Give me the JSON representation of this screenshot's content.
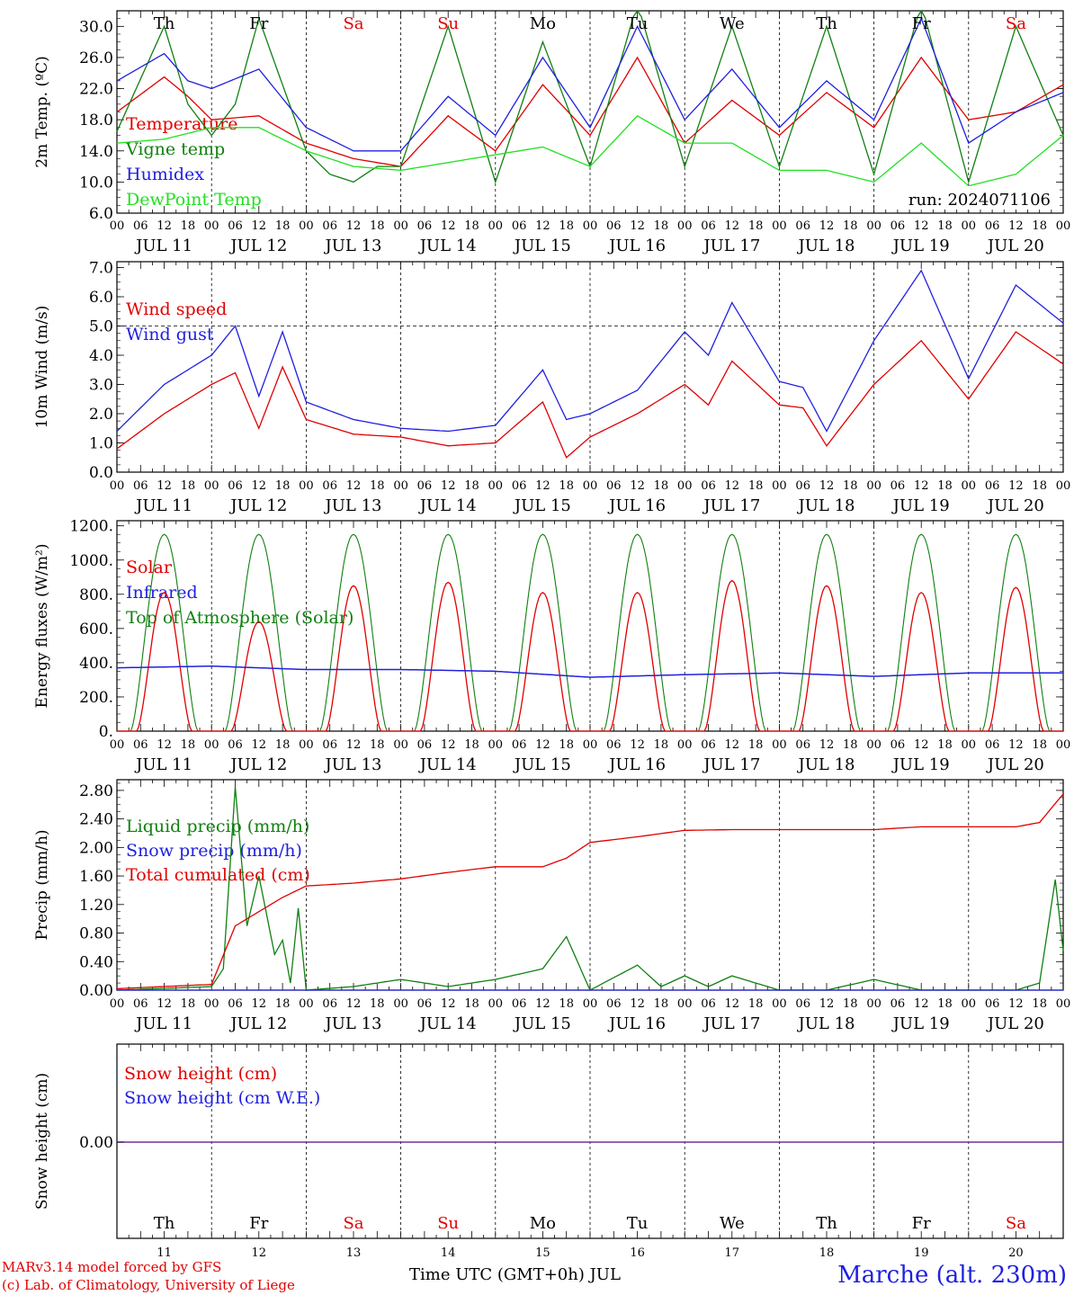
{
  "run_label": "run: 2024071106",
  "day_names": [
    "Th",
    "Fr",
    "Sa",
    "Su",
    "Mo",
    "Tu",
    "We",
    "Th",
    "Fr",
    "Sa"
  ],
  "weekend_day_index": [
    2,
    3,
    9
  ],
  "date_labels": [
    "JUL 11",
    "JUL 12",
    "JUL 13",
    "JUL 14",
    "JUL 15",
    "JUL 16",
    "JUL 17",
    "JUL 18",
    "JUL 19",
    "JUL 20"
  ],
  "day_numbers": [
    "11",
    "12",
    "13",
    "14",
    "15",
    "16",
    "17",
    "18",
    "19",
    "20"
  ],
  "hour_labels": [
    "00",
    "06",
    "12",
    "18"
  ],
  "final_hour_label": "00",
  "footer": {
    "model": "MARv3.14 model forced by GFS",
    "copyright": "(c) Lab. of Climatology, University of Liege",
    "time_title": "Time UTC (GMT+0h) JUL",
    "station": "Marche (alt. 230m)"
  },
  "colors": {
    "red": "#e00000",
    "green": "#108010",
    "blue": "#2020e0",
    "lightgreen": "#20e020",
    "purple": "#7030a0",
    "grid": "#000000"
  },
  "chart_data": [
    {
      "type": "line",
      "ylabel": "2m Temp. (ºC)",
      "yticks": [
        "6.0",
        "10.0",
        "14.0",
        "18.0",
        "22.0",
        "26.0",
        "30.0"
      ],
      "ylim": [
        6,
        32
      ],
      "x_unit": "hours since JUL 11 00 UTC",
      "series": [
        {
          "name": "Temperature",
          "color": "red",
          "x": [
            0,
            12,
            18,
            24,
            36,
            48,
            60,
            72,
            84,
            96,
            108,
            120,
            132,
            144,
            156,
            168,
            180,
            192,
            204,
            216,
            228,
            240
          ],
          "values": [
            19,
            23.5,
            21,
            18,
            18.5,
            15,
            13,
            12,
            18.5,
            14,
            22.5,
            16,
            26,
            15,
            20.5,
            16,
            21.5,
            17,
            26,
            18,
            19,
            22.5
          ]
        },
        {
          "name": "Vigne temp",
          "color": "green",
          "x": [
            0,
            12,
            18,
            24,
            30,
            36,
            48,
            54,
            60,
            66,
            72,
            84,
            96,
            108,
            120,
            132,
            144,
            156,
            168,
            180,
            192,
            204,
            216,
            228,
            240
          ],
          "values": [
            16.5,
            30,
            20,
            16,
            20,
            31,
            14,
            11,
            10,
            12,
            12,
            30,
            10,
            28,
            12,
            33,
            12,
            30,
            12,
            30,
            11,
            33,
            10,
            30,
            16
          ]
        },
        {
          "name": "Humidex",
          "color": "blue",
          "x": [
            0,
            12,
            18,
            24,
            36,
            48,
            60,
            72,
            84,
            96,
            108,
            120,
            132,
            144,
            156,
            168,
            180,
            192,
            204,
            216,
            228,
            240
          ],
          "values": [
            23,
            26.5,
            23,
            22,
            24.5,
            17,
            14,
            14,
            21,
            16,
            26,
            17,
            30,
            18,
            24.5,
            17,
            23,
            18,
            31,
            15,
            19,
            21.5
          ]
        },
        {
          "name": "DewPoint Temp",
          "color": "lightgreen",
          "x": [
            0,
            12,
            24,
            36,
            48,
            60,
            72,
            84,
            96,
            108,
            120,
            132,
            144,
            156,
            168,
            180,
            192,
            204,
            216,
            228,
            240
          ],
          "values": [
            15,
            15.5,
            17,
            17,
            14,
            12,
            11.5,
            12.5,
            13.5,
            14.5,
            12,
            18.5,
            15,
            15,
            11.5,
            11.5,
            10,
            15,
            9.5,
            11,
            16
          ]
        }
      ]
    },
    {
      "type": "line",
      "ylabel": "10m Wind (m/s)",
      "yticks": [
        "0.0",
        "1.0",
        "2.0",
        "3.0",
        "4.0",
        "5.0",
        "6.0",
        "7.0"
      ],
      "ylim": [
        0,
        7.2
      ],
      "reference_line": 5.0,
      "series": [
        {
          "name": "Wind speed",
          "color": "red",
          "x": [
            0,
            12,
            24,
            30,
            36,
            42,
            48,
            60,
            72,
            84,
            96,
            108,
            114,
            120,
            132,
            144,
            150,
            156,
            168,
            174,
            180,
            192,
            204,
            216,
            228,
            240
          ],
          "values": [
            0.8,
            2.0,
            3.0,
            3.4,
            1.5,
            3.6,
            1.8,
            1.3,
            1.2,
            0.9,
            1.0,
            2.4,
            0.5,
            1.2,
            2.0,
            3.0,
            2.3,
            3.8,
            2.3,
            2.2,
            0.9,
            3.0,
            4.5,
            2.5,
            4.8,
            3.7
          ]
        },
        {
          "name": "Wind gust",
          "color": "blue",
          "x": [
            0,
            12,
            24,
            30,
            36,
            42,
            48,
            60,
            72,
            84,
            96,
            108,
            114,
            120,
            132,
            144,
            150,
            156,
            168,
            174,
            180,
            192,
            204,
            216,
            228,
            240
          ],
          "values": [
            1.4,
            3.0,
            4.0,
            5.0,
            2.6,
            4.8,
            2.4,
            1.8,
            1.5,
            1.4,
            1.6,
            3.5,
            1.8,
            2.0,
            2.8,
            4.8,
            4.0,
            5.8,
            3.1,
            2.9,
            1.4,
            4.5,
            6.9,
            3.2,
            6.4,
            5.1
          ]
        }
      ]
    },
    {
      "type": "line",
      "ylabel": "Energy fluxes (W/m²)",
      "yticks": [
        "0.",
        "200.",
        "400.",
        "600.",
        "800.",
        "1000.",
        "1200."
      ],
      "ylim": [
        0,
        1230
      ],
      "solar_peaks": [
        810,
        640,
        850,
        870,
        810,
        810,
        880,
        850,
        810,
        840
      ],
      "infrared_daily": [
        370,
        380,
        360,
        360,
        350,
        315,
        330,
        340,
        320,
        340
      ],
      "toa_peak": 1150,
      "series": [
        {
          "name": "Solar",
          "color": "red"
        },
        {
          "name": "Infrared",
          "color": "blue"
        },
        {
          "name": "Top of Atmosphere (Solar)",
          "color": "green"
        }
      ]
    },
    {
      "type": "line",
      "ylabel": "Precip (mm/h)",
      "yticks": [
        "0.00",
        "0.40",
        "0.80",
        "1.20",
        "1.60",
        "2.00",
        "2.40",
        "2.80"
      ],
      "ylim": [
        0,
        2.95
      ],
      "series": [
        {
          "name": "Liquid precip (mm/h)",
          "color": "green",
          "x": [
            0,
            24,
            27,
            30,
            33,
            36,
            40,
            42,
            44,
            46,
            48,
            60,
            72,
            84,
            96,
            108,
            114,
            120,
            132,
            138,
            144,
            150,
            156,
            168,
            180,
            192,
            204,
            228,
            234,
            238,
            240
          ],
          "values": [
            0,
            0.05,
            0.3,
            2.85,
            0.9,
            1.6,
            0.5,
            0.7,
            0.1,
            1.15,
            0,
            0.05,
            0.15,
            0.05,
            0.15,
            0.3,
            0.75,
            0,
            0.35,
            0.05,
            0.2,
            0.05,
            0.2,
            0,
            0,
            0.15,
            0,
            0,
            0.1,
            1.55,
            0.55
          ]
        },
        {
          "name": "Snow precip (mm/h)",
          "color": "blue",
          "x": [
            0,
            240
          ],
          "values": [
            0,
            0
          ]
        },
        {
          "name": "Total cumulated (cm)",
          "color": "red",
          "x": [
            0,
            24,
            30,
            36,
            42,
            48,
            60,
            72,
            84,
            96,
            108,
            114,
            120,
            132,
            144,
            156,
            168,
            180,
            192,
            204,
            216,
            228,
            234,
            240
          ],
          "values": [
            0.02,
            0.08,
            0.9,
            1.1,
            1.3,
            1.46,
            1.5,
            1.56,
            1.65,
            1.73,
            1.73,
            1.85,
            2.07,
            2.15,
            2.24,
            2.25,
            2.25,
            2.25,
            2.25,
            2.29,
            2.29,
            2.29,
            2.35,
            2.75
          ]
        }
      ]
    },
    {
      "type": "line",
      "ylabel": "Snow height (cm)",
      "yticks": [
        "0.00"
      ],
      "series": [
        {
          "name": "Snow height (cm)",
          "color": "red",
          "x": [
            0,
            240
          ],
          "values": [
            0,
            0
          ]
        },
        {
          "name": "Snow height (cm W.E.)",
          "color": "blue",
          "x": [
            0,
            240
          ],
          "values": [
            0,
            0
          ]
        }
      ]
    }
  ]
}
